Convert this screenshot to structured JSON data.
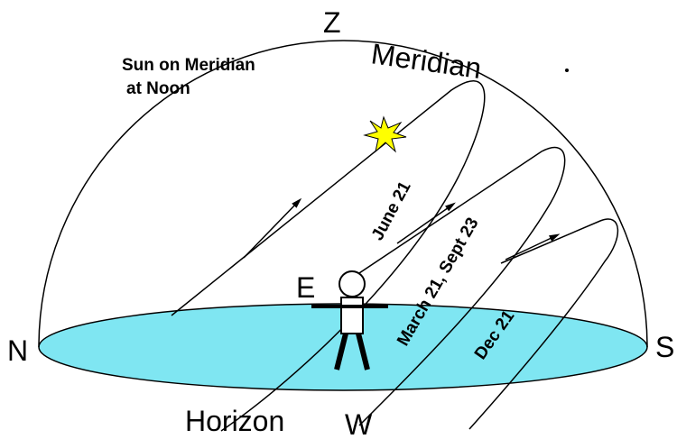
{
  "labels": {
    "zenith": "Z",
    "meridian": "Meridian",
    "sun_note_1": "Sun on Meridian",
    "sun_note_2": "at Noon",
    "june": "June 21",
    "equinox": "March 21, Sept 23",
    "december": "Dec 21",
    "east": "E",
    "north": "N",
    "south": "S",
    "west": "W",
    "horizon": "Horizon"
  }
}
